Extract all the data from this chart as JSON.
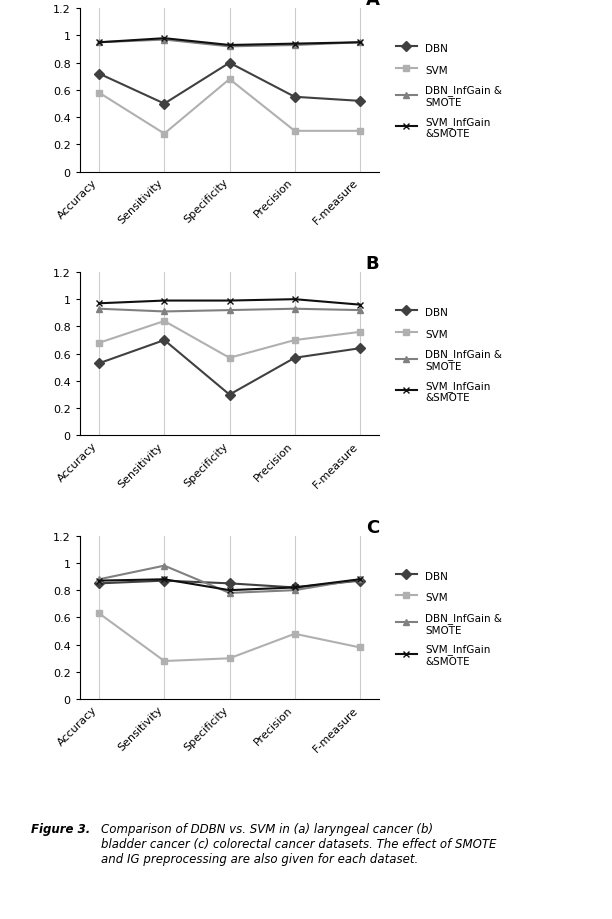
{
  "categories": [
    "Accuracy",
    "Sensitivity",
    "Specificity",
    "Precision",
    "F-measure"
  ],
  "chart_A": {
    "DBN": [
      0.72,
      0.5,
      0.8,
      0.55,
      0.52
    ],
    "SVM": [
      0.58,
      0.28,
      0.68,
      0.3,
      0.3
    ],
    "DBN_InfGain": [
      0.95,
      0.97,
      0.92,
      0.93,
      0.95
    ],
    "SVM_InfGain": [
      0.95,
      0.98,
      0.93,
      0.94,
      0.95
    ]
  },
  "chart_B": {
    "DBN": [
      0.53,
      0.7,
      0.3,
      0.57,
      0.64
    ],
    "SVM": [
      0.68,
      0.84,
      0.57,
      0.7,
      0.76
    ],
    "DBN_InfGain": [
      0.93,
      0.91,
      0.92,
      0.93,
      0.92
    ],
    "SVM_InfGain": [
      0.97,
      0.99,
      0.99,
      1.0,
      0.96
    ]
  },
  "chart_C": {
    "DBN": [
      0.85,
      0.87,
      0.85,
      0.82,
      0.87
    ],
    "SVM": [
      0.63,
      0.28,
      0.3,
      0.48,
      0.38
    ],
    "DBN_InfGain": [
      0.88,
      0.98,
      0.78,
      0.8,
      0.88
    ],
    "SVM_InfGain": [
      0.87,
      0.88,
      0.8,
      0.82,
      0.88
    ]
  },
  "panel_labels": [
    "A",
    "B",
    "C"
  ],
  "legend_labels": [
    "DBN",
    "SVM",
    "DBN_InfGain &\nSMOTE",
    "SVM_InfGain\n&SMOTE"
  ],
  "colors": {
    "DBN": "#404040",
    "SVM": "#b0b0b0",
    "DBN_InfGain": "#808080",
    "SVM_InfGain": "#101010"
  },
  "markers": {
    "DBN": "D",
    "SVM": "s",
    "DBN_InfGain": "^",
    "SVM_InfGain": "x"
  },
  "ylim": [
    0,
    1.2
  ],
  "yticks": [
    0,
    0.2,
    0.4,
    0.6,
    0.8,
    1.0,
    1.2
  ],
  "background_color": "#ffffff",
  "linewidth": 1.5,
  "markersize": 5
}
